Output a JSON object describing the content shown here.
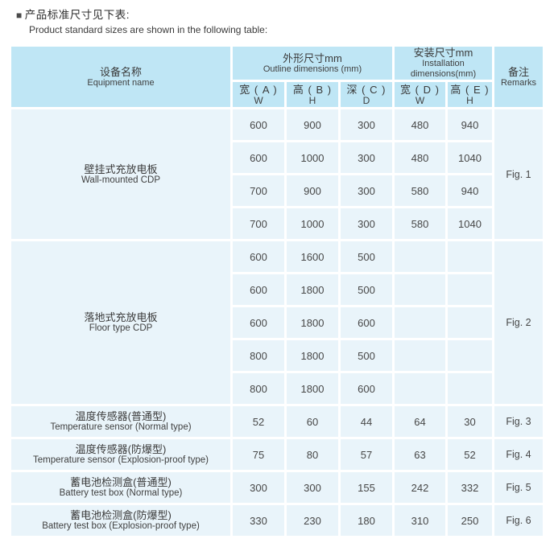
{
  "page": {
    "title_zh": "产品标准尺寸见下表:",
    "title_en": "Product standard sizes are shown in the following table:"
  },
  "table": {
    "headers": {
      "equipment_zh": "设备名称",
      "equipment_en": "Equipment name",
      "outline_zh": "外形尺寸mm",
      "outline_en": "Outline dimensions (mm)",
      "install_zh": "安装尺寸mm",
      "install_en": "Installation dimensions(mm)",
      "remarks_zh": "备注",
      "remarks_en": "Remarks",
      "cols": [
        {
          "zh": "宽 ( A )",
          "en": "W"
        },
        {
          "zh": "高 ( B )",
          "en": "H"
        },
        {
          "zh": "深 ( C )",
          "en": "D"
        },
        {
          "zh": "宽 ( D )",
          "en": "W"
        },
        {
          "zh": "高 ( E )",
          "en": "H"
        }
      ]
    },
    "groups": [
      {
        "name_zh": "壁挂式充放电板",
        "name_en": "Wall-mounted CDP",
        "remark": "Fig. 1",
        "rows": [
          [
            "600",
            "900",
            "300",
            "480",
            "940"
          ],
          [
            "600",
            "1000",
            "300",
            "480",
            "1040"
          ],
          [
            "700",
            "900",
            "300",
            "580",
            "940"
          ],
          [
            "700",
            "1000",
            "300",
            "580",
            "1040"
          ]
        ]
      },
      {
        "name_zh": "落地式充放电板",
        "name_en": "Floor type CDP",
        "remark": "Fig. 2",
        "rows": [
          [
            "600",
            "1600",
            "500",
            "",
            ""
          ],
          [
            "600",
            "1800",
            "500",
            "",
            ""
          ],
          [
            "600",
            "1800",
            "600",
            "",
            ""
          ],
          [
            "800",
            "1800",
            "500",
            "",
            ""
          ],
          [
            "800",
            "1800",
            "600",
            "",
            ""
          ]
        ]
      },
      {
        "name_zh": "温度传感器(普通型)",
        "name_en": "Temperature sensor (Normal type)",
        "remark": "Fig. 3",
        "rows": [
          [
            "52",
            "60",
            "44",
            "64",
            "30"
          ]
        ]
      },
      {
        "name_zh": "温度传感器(防爆型)",
        "name_en": "Temperature sensor (Explosion-proof type)",
        "remark": "Fig. 4",
        "rows": [
          [
            "75",
            "80",
            "57",
            "63",
            "52"
          ]
        ]
      },
      {
        "name_zh": "蓄电池检测盒(普通型)",
        "name_en": "Battery test box (Normal type)",
        "remark": "Fig. 5",
        "rows": [
          [
            "300",
            "300",
            "155",
            "242",
            "332"
          ]
        ]
      },
      {
        "name_zh": "蓄电池检测盒(防爆型)",
        "name_en": "Battery test box (Explosion-proof type)",
        "remark": "Fig. 6",
        "rows": [
          [
            "330",
            "230",
            "180",
            "310",
            "250"
          ]
        ]
      }
    ],
    "colors": {
      "header_bg": "#bfe6f5",
      "cell_bg": "#e9f4fa",
      "border": "#ffffff",
      "text": "#3d3d3d"
    }
  }
}
